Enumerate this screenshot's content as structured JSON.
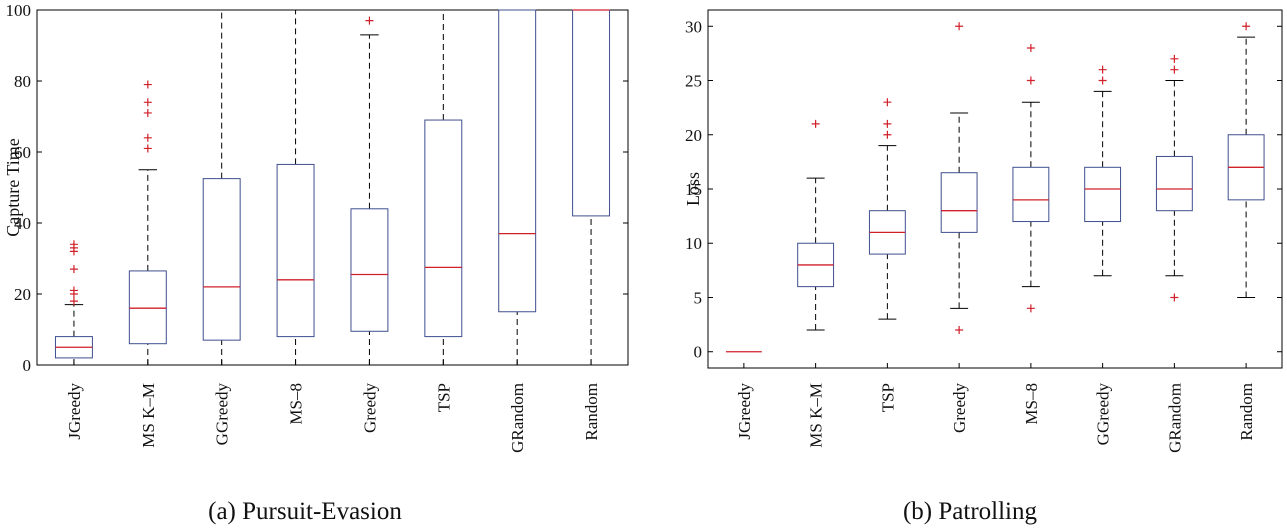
{
  "chart_data": [
    {
      "type": "box",
      "caption": "(a) Pursuit-Evasion",
      "ylabel": "Capture Time",
      "ylim": [
        0,
        100
      ],
      "yticks": [
        0,
        20,
        40,
        60,
        80,
        100
      ],
      "categories": [
        "JGreedy",
        "MS K–M",
        "GGreedy",
        "MS–8",
        "Greedy",
        "TSP",
        "GRandom",
        "Random"
      ],
      "boxes": [
        {
          "name": "JGreedy",
          "whisker_low": 0,
          "q1": 2,
          "median": 5,
          "q3": 8,
          "whisker_high": 17,
          "outliers": [
            18,
            20,
            21,
            27,
            32,
            33,
            34
          ]
        },
        {
          "name": "MS K–M",
          "whisker_low": 0,
          "q1": 6,
          "median": 16,
          "q3": 26.5,
          "whisker_high": 55,
          "outliers": [
            61,
            64,
            71,
            74,
            79
          ]
        },
        {
          "name": "GGreedy",
          "whisker_low": 0,
          "q1": 7,
          "median": 22,
          "q3": 52.5,
          "whisker_high": 100,
          "outliers": []
        },
        {
          "name": "MS–8",
          "whisker_low": 0,
          "q1": 8,
          "median": 24,
          "q3": 56.5,
          "whisker_high": 100,
          "outliers": []
        },
        {
          "name": "Greedy",
          "whisker_low": 0,
          "q1": 9.5,
          "median": 25.5,
          "q3": 44,
          "whisker_high": 93,
          "outliers": [
            97
          ]
        },
        {
          "name": "TSP",
          "whisker_low": 0,
          "q1": 8,
          "median": 27.5,
          "q3": 69,
          "whisker_high": 100,
          "outliers": []
        },
        {
          "name": "GRandom",
          "whisker_low": 0,
          "q1": 15,
          "median": 37,
          "q3": 100,
          "whisker_high": 100,
          "outliers": []
        },
        {
          "name": "Random",
          "whisker_low": 0,
          "q1": 42,
          "median": 100,
          "q3": 100,
          "whisker_high": 100,
          "outliers": []
        }
      ]
    },
    {
      "type": "box",
      "caption": "(b) Patrolling",
      "ylabel": "Loss",
      "ylim": [
        -1.5,
        31.5
      ],
      "yticks": [
        0,
        5,
        10,
        15,
        20,
        25,
        30
      ],
      "categories": [
        "JGreedy",
        "MS K–M",
        "TSP",
        "Greedy",
        "MS–8",
        "GGreedy",
        "GRandom",
        "Random"
      ],
      "boxes": [
        {
          "name": "JGreedy",
          "whisker_low": 0,
          "q1": 0,
          "median": 0,
          "q3": 0,
          "whisker_high": 0,
          "outliers": []
        },
        {
          "name": "MS K–M",
          "whisker_low": 2,
          "q1": 6,
          "median": 8,
          "q3": 10,
          "whisker_high": 16,
          "outliers": [
            21
          ]
        },
        {
          "name": "TSP",
          "whisker_low": 3,
          "q1": 9,
          "median": 11,
          "q3": 13,
          "whisker_high": 19,
          "outliers": [
            20,
            21,
            23
          ]
        },
        {
          "name": "Greedy",
          "whisker_low": 4,
          "q1": 11,
          "median": 13,
          "q3": 16.5,
          "whisker_high": 22,
          "outliers": [
            2,
            30
          ]
        },
        {
          "name": "MS–8",
          "whisker_low": 6,
          "q1": 12,
          "median": 14,
          "q3": 17,
          "whisker_high": 23,
          "outliers": [
            4,
            25,
            28
          ]
        },
        {
          "name": "GGreedy",
          "whisker_low": 7,
          "q1": 12,
          "median": 15,
          "q3": 17,
          "whisker_high": 24,
          "outliers": [
            25,
            26
          ]
        },
        {
          "name": "GRandom",
          "whisker_low": 7,
          "q1": 13,
          "median": 15,
          "q3": 18,
          "whisker_high": 25,
          "outliers": [
            5,
            26,
            27
          ]
        },
        {
          "name": "Random",
          "whisker_low": 5,
          "q1": 14,
          "median": 17,
          "q3": 20,
          "whisker_high": 29,
          "outliers": [
            30
          ]
        }
      ]
    }
  ],
  "colors": {
    "box": "#3f4f8f",
    "median": "#d0202a",
    "outlier": "#d0202a",
    "whisker": "#000000",
    "axis": "#000000"
  }
}
